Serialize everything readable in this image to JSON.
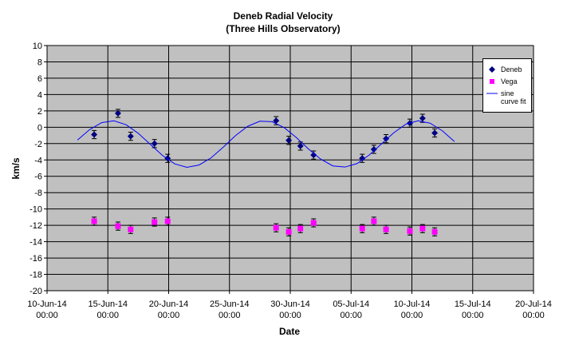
{
  "chart_data": {
    "type": "scatter",
    "title": "Deneb Radial Velocity",
    "subtitle": "(Three Hills Observatory)",
    "x_label": "Date",
    "y_label": "km/s",
    "xlim": [
      "2014-06-10T00:00",
      "2014-07-20T00:00"
    ],
    "xticks": [
      {
        "value": "2014-06-10T00:00",
        "label": [
          "10-Jun-14",
          "00:00"
        ]
      },
      {
        "value": "2014-06-15T00:00",
        "label": [
          "15-Jun-14",
          "00:00"
        ]
      },
      {
        "value": "2014-06-20T00:00",
        "label": [
          "20-Jun-14",
          "00:00"
        ]
      },
      {
        "value": "2014-06-25T00:00",
        "label": [
          "25-Jun-14",
          "00:00"
        ]
      },
      {
        "value": "2014-06-30T00:00",
        "label": [
          "30-Jun-14",
          "00:00"
        ]
      },
      {
        "value": "2014-07-05T00:00",
        "label": [
          "05-Jul-14",
          "00:00"
        ]
      },
      {
        "value": "2014-07-10T00:00",
        "label": [
          "10-Jul-14",
          "00:00"
        ]
      },
      {
        "value": "2014-07-15T00:00",
        "label": [
          "15-Jul-14",
          "00:00"
        ]
      },
      {
        "value": "2014-07-20T00:00",
        "label": [
          "20-Jul-14",
          "00:00"
        ]
      }
    ],
    "ylim": [
      -20,
      10
    ],
    "yticks": [
      -20,
      -18,
      -16,
      -14,
      -12,
      -10,
      -8,
      -6,
      -4,
      -2,
      0,
      2,
      4,
      6,
      8,
      10
    ],
    "grid": true,
    "background": "#c0c0c0",
    "legend": "right",
    "series": [
      {
        "name": "Deneb",
        "color": "#000080",
        "marker": "diamond",
        "error": 0.5,
        "x": [
          "2014-06-13T21:00",
          "2014-06-15T20:00",
          "2014-06-16T21:00",
          "2014-06-18T20:00",
          "2014-06-19T22:00",
          "2014-06-28T20:00",
          "2014-06-29T21:00",
          "2014-06-30T20:00",
          "2014-07-01T22:00",
          "2014-07-05T22:00",
          "2014-07-06T21:00",
          "2014-07-07T21:00",
          "2014-07-09T20:00",
          "2014-07-10T21:00",
          "2014-07-11T21:00"
        ],
        "values": [
          -0.9,
          1.7,
          -1.1,
          -2.0,
          -3.8,
          0.8,
          -1.6,
          -2.3,
          -3.4,
          -3.8,
          -2.7,
          -1.4,
          0.5,
          1.1,
          -0.7
        ]
      },
      {
        "name": "Vega",
        "color": "#ff00ff",
        "marker": "square",
        "error": 0.5,
        "x": [
          "2014-06-13T21:00",
          "2014-06-15T20:00",
          "2014-06-16T21:00",
          "2014-06-18T20:00",
          "2014-06-19T22:00",
          "2014-06-28T20:00",
          "2014-06-29T21:00",
          "2014-06-30T20:00",
          "2014-07-01T22:00",
          "2014-07-05T22:00",
          "2014-07-06T21:00",
          "2014-07-07T21:00",
          "2014-07-09T20:00",
          "2014-07-10T21:00",
          "2014-07-11T21:00"
        ],
        "values": [
          -11.5,
          -12.1,
          -12.5,
          -11.6,
          -11.5,
          -12.3,
          -12.8,
          -12.4,
          -11.7,
          -12.4,
          -11.5,
          -12.5,
          -12.7,
          -12.4,
          -12.8
        ]
      },
      {
        "name": "sine curve fit",
        "color": "#0000ff",
        "marker": "line",
        "x": [
          "2014-06-12T12:00",
          "2014-06-13T12:00",
          "2014-06-14T12:00",
          "2014-06-15T12:00",
          "2014-06-16T12:00",
          "2014-06-17T12:00",
          "2014-06-18T12:00",
          "2014-06-19T12:00",
          "2014-06-20T12:00",
          "2014-06-21T12:00",
          "2014-06-22T12:00",
          "2014-06-23T12:00",
          "2014-06-24T12:00",
          "2014-06-25T12:00",
          "2014-06-26T12:00",
          "2014-06-27T12:00",
          "2014-06-28T12:00",
          "2014-06-29T12:00",
          "2014-06-30T12:00",
          "2014-07-01T12:00",
          "2014-07-02T12:00",
          "2014-07-03T12:00",
          "2014-07-04T12:00",
          "2014-07-05T12:00",
          "2014-07-06T12:00",
          "2014-07-07T12:00",
          "2014-07-08T12:00",
          "2014-07-09T12:00",
          "2014-07-10T12:00",
          "2014-07-11T12:00",
          "2014-07-12T12:00",
          "2014-07-13T12:00"
        ],
        "values": [
          -1.57,
          -0.29,
          0.57,
          0.79,
          0.31,
          -0.74,
          -2.1,
          -3.46,
          -4.48,
          -4.9,
          -4.62,
          -3.73,
          -2.42,
          -1.02,
          0.12,
          0.74,
          0.68,
          -0.05,
          -1.26,
          -2.67,
          -3.9,
          -4.73,
          -4.87,
          -4.44,
          -3.39,
          -2.03,
          -0.69,
          0.38,
          0.79,
          0.5,
          -0.43,
          -1.75
        ]
      }
    ]
  }
}
